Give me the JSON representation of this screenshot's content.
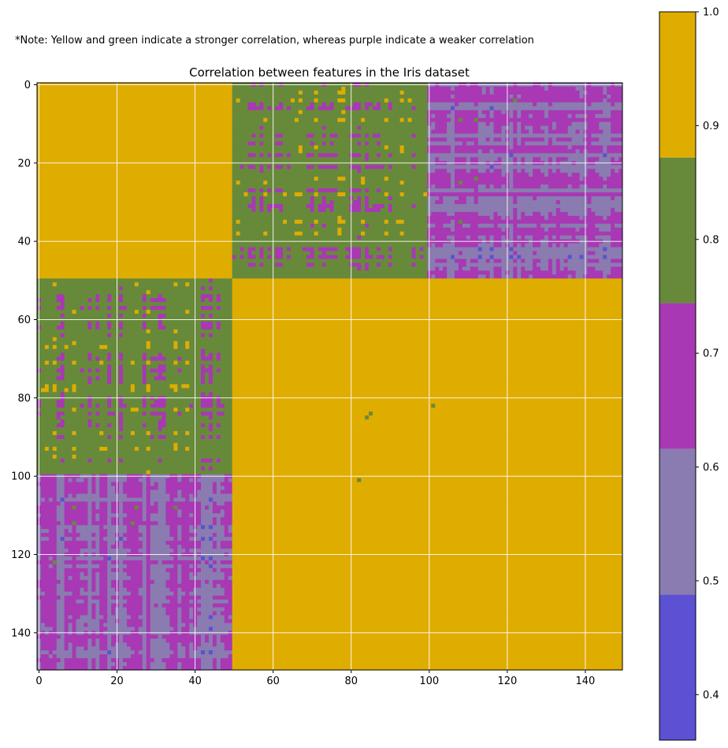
{
  "note": "*Note: Yellow and green indicate a stronger correlation, whereas purple indicate a weaker correlation",
  "chart_data": {
    "type": "heatmap",
    "title": "Correlation between features in the Iris dataset",
    "xlabel": "",
    "ylabel": "",
    "size": 150,
    "xlim": [
      0,
      150
    ],
    "ylim": [
      150,
      0
    ],
    "x_ticks": [
      0,
      20,
      40,
      60,
      80,
      100,
      120,
      140
    ],
    "y_ticks": [
      0,
      20,
      40,
      60,
      80,
      100,
      120,
      140
    ],
    "grid": true,
    "blocks": [
      {
        "rows": [
          0,
          50
        ],
        "cols": [
          0,
          50
        ],
        "value": 0.95
      },
      {
        "rows": [
          50,
          150
        ],
        "cols": [
          50,
          150
        ],
        "value": 0.95
      },
      {
        "rows": [
          0,
          50
        ],
        "cols": [
          50,
          100
        ],
        "range": [
          0.6,
          1.0
        ],
        "mostly": [
          0.7,
          0.9
        ]
      },
      {
        "rows": [
          0,
          50
        ],
        "cols": [
          100,
          150
        ],
        "range": [
          0.4,
          0.9
        ],
        "mostly": [
          0.5,
          0.8
        ]
      }
    ],
    "symmetric": true,
    "colorbar": {
      "min": 0.36,
      "max": 1.0,
      "ticks": [
        0.4,
        0.5,
        0.6,
        0.7,
        0.8,
        0.9,
        1.0
      ],
      "tick_labels": [
        "0.4",
        "0.5",
        "0.6",
        "0.7",
        "0.8",
        "0.9",
        "1.0"
      ],
      "bins": [
        {
          "from": 0.36,
          "to": 0.488,
          "color": "#5b51d2"
        },
        {
          "from": 0.488,
          "to": 0.616,
          "color": "#8a7bb0"
        },
        {
          "from": 0.616,
          "to": 0.744,
          "color": "#a838b4"
        },
        {
          "from": 0.744,
          "to": 0.872,
          "color": "#678a3a"
        },
        {
          "from": 0.872,
          "to": 1.0,
          "color": "#dfac00"
        }
      ]
    }
  }
}
